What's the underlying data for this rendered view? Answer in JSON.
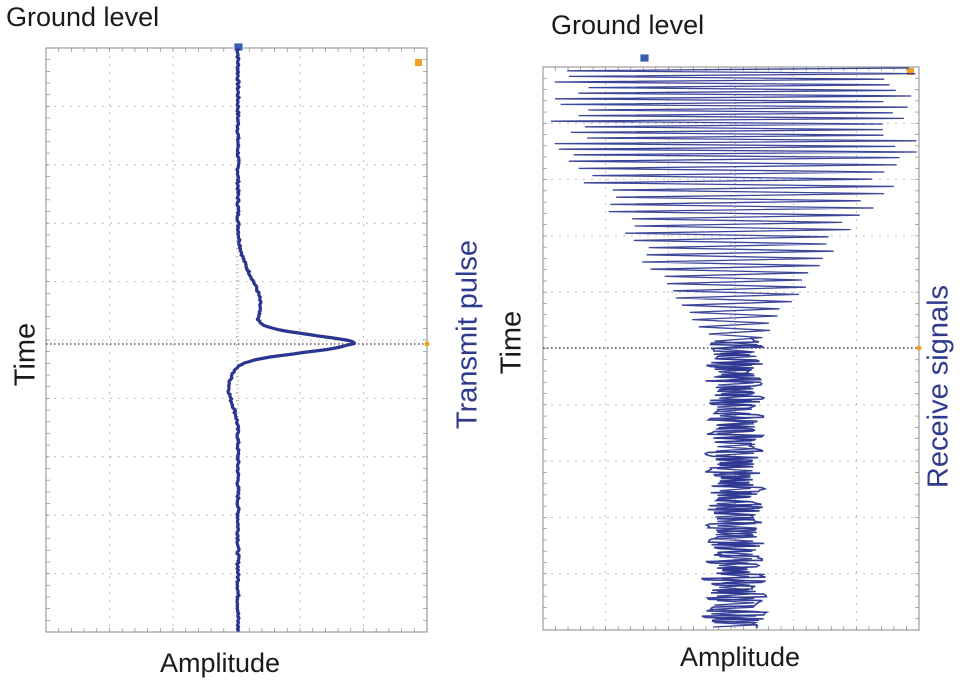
{
  "panels": [
    {
      "ground_label": "Ground level",
      "time_label": "Time",
      "amplitude_label": "Amplitude",
      "side_label": "Transmit pulse"
    },
    {
      "ground_label": "Ground level",
      "time_label": "Time",
      "amplitude_label": "Amplitude",
      "side_label": "Receive signals"
    }
  ],
  "colors": {
    "trace": "#2a3590",
    "side_label": "#2e3a8c",
    "grid": "#9a9a9a",
    "marker_blue": "#3a5fb0",
    "marker_orange": "#f0a020"
  },
  "icons": [
    "ground-marker-icon",
    "trigger-marker-icon"
  ]
}
